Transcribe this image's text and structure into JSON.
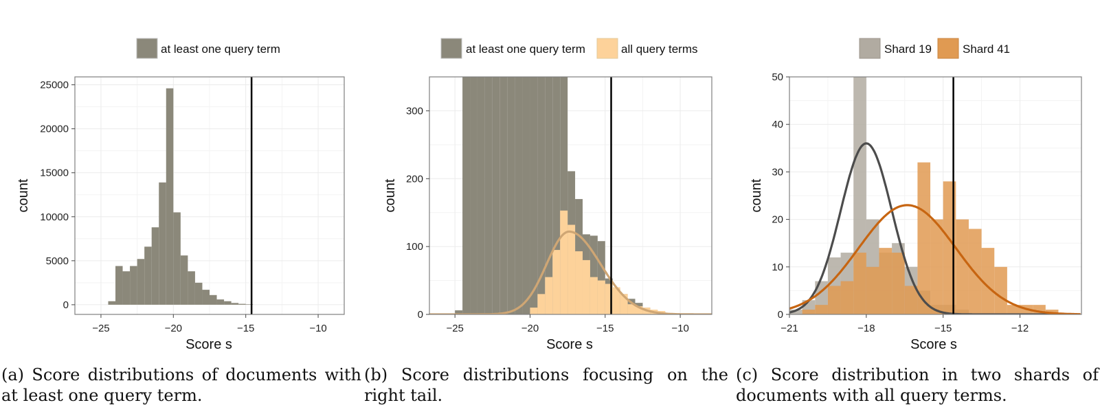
{
  "colors": {
    "dark_hist": "#8b887a",
    "light_hist": "#fdd29a",
    "light_curve": "#cfa674",
    "shard19": "#b1aba1",
    "shard41": "#e09a52",
    "curve19": "#4c4c4c",
    "curve41": "#c76511",
    "vline": "#000000",
    "panel_border": "#7f7f7f",
    "grid": "#ebebeb"
  },
  "captions": {
    "a": "(a) Score distributions of documents with at least one query term.",
    "b": "(b) Score distributions focusing on the right tail.",
    "c": "(c) Score distribution in two shards of documents with all query terms."
  },
  "chart_data": [
    {
      "type": "bar",
      "panel": "a",
      "xlabel": "Score s",
      "ylabel": "count",
      "legend": {
        "position": "top",
        "entries": [
          {
            "name": "at least one query term",
            "color_key": "dark_hist"
          }
        ]
      },
      "xlim": [
        -26.8,
        -8.2
      ],
      "ylim": [
        -1100,
        25900
      ],
      "xticks": [
        -25,
        -20,
        -15,
        -10
      ],
      "xtick_labels": [
        "−25",
        "−20",
        "−15",
        "−10"
      ],
      "yticks": [
        0,
        5000,
        10000,
        15000,
        20000,
        25000
      ],
      "ytick_labels": [
        "0",
        "5000",
        "10000",
        "15000",
        "20000",
        "25000"
      ],
      "vline": -14.6,
      "bin_width": 0.5,
      "series": [
        {
          "name": "at least one query term",
          "color_key": "dark_hist",
          "bin_starts": [
            -24.5,
            -24.0,
            -23.5,
            -23.0,
            -22.5,
            -22.0,
            -21.5,
            -21.0,
            -20.5,
            -20.0,
            -19.5,
            -19.0,
            -18.5,
            -18.0,
            -17.5,
            -17.0,
            -16.5,
            -16.0,
            -15.5,
            -15.0
          ],
          "values": [
            400,
            4400,
            3800,
            4400,
            5200,
            6600,
            8800,
            13900,
            24600,
            10500,
            5600,
            3800,
            2500,
            1700,
            1100,
            600,
            400,
            200,
            100,
            50
          ]
        }
      ]
    },
    {
      "type": "bar",
      "panel": "b",
      "xlabel": "Score s",
      "ylabel": "count",
      "legend": {
        "position": "top",
        "entries": [
          {
            "name": "at least one query term",
            "color_key": "dark_hist"
          },
          {
            "name": "all query terms",
            "color_key": "light_hist"
          }
        ]
      },
      "xlim": [
        -26.7,
        -7.9
      ],
      "ylim": [
        0,
        350
      ],
      "xticks": [
        -25,
        -20,
        -15,
        -10
      ],
      "xtick_labels": [
        "−25",
        "−20",
        "−15",
        "−10"
      ],
      "yticks": [
        0,
        100,
        200,
        300
      ],
      "ytick_labels": [
        "0",
        "100",
        "200",
        "300"
      ],
      "vline": -14.6,
      "bin_width": 0.5,
      "series": [
        {
          "name": "at least one query term",
          "color_key": "dark_hist",
          "bin_starts": [
            -25.5,
            -25.0,
            -24.5,
            -24.0,
            -23.5,
            -23.0,
            -22.5,
            -22.0,
            -21.5,
            -21.0,
            -20.5,
            -20.0,
            -19.5,
            -19.0,
            -18.5,
            -18.0,
            -17.5,
            -17.0,
            -16.5,
            -16.0,
            -15.5,
            -15.0,
            -14.5,
            -14.0,
            -13.5,
            -13.0,
            -12.5,
            -12.0,
            -11.5,
            -11.0,
            -10.5,
            -10.0
          ],
          "values": [
            1,
            6,
            350,
            350,
            350,
            350,
            350,
            350,
            350,
            350,
            350,
            350,
            350,
            350,
            350,
            350,
            211,
            170,
            118,
            116,
            108,
            53,
            38,
            30,
            23,
            17,
            10,
            6,
            4,
            2,
            1,
            0
          ]
        },
        {
          "name": "all query terms",
          "color_key": "light_hist",
          "bin_starts": [
            -20.0,
            -19.5,
            -19.0,
            -18.5,
            -18.0,
            -17.5,
            -17.0,
            -16.5,
            -16.0,
            -15.5,
            -15.0,
            -14.5,
            -14.0,
            -13.5,
            -13.0,
            -12.5,
            -12.0,
            -11.5,
            -11.0,
            -10.5,
            -10.0
          ],
          "values": [
            10,
            30,
            55,
            95,
            153,
            132,
            93,
            80,
            55,
            50,
            45,
            40,
            30,
            15,
            12,
            10,
            7,
            5,
            2,
            1,
            1
          ]
        },
        {
          "name": "fit",
          "kind": "curve",
          "color_key": "light_curve",
          "params": {
            "mu": -17.4,
            "sigma": 1.5,
            "peak": 122,
            "right_sigma": 2.1
          }
        }
      ]
    },
    {
      "type": "bar",
      "panel": "c",
      "xlabel": "Score s",
      "ylabel": "count",
      "legend": {
        "position": "top",
        "entries": [
          {
            "name": "Shard 19",
            "color_key": "shard19"
          },
          {
            "name": "Shard 41",
            "color_key": "shard41"
          }
        ]
      },
      "xlim": [
        -21,
        -9.6
      ],
      "ylim": [
        0,
        50
      ],
      "xticks": [
        -21,
        -18,
        -15,
        -12
      ],
      "xtick_labels": [
        "−21",
        "−18",
        "−15",
        "−12"
      ],
      "yticks": [
        0,
        10,
        20,
        30,
        40,
        50
      ],
      "ytick_labels": [
        "0",
        "10",
        "20",
        "30",
        "40",
        "50"
      ],
      "vline": -14.6,
      "bin_width": 0.5,
      "series": [
        {
          "name": "Shard 19",
          "color_key": "shard19",
          "bin_starts": [
            -21.0,
            -20.5,
            -20.0,
            -19.5,
            -19.0,
            -18.5,
            -18.0,
            -17.5,
            -17.0,
            -16.5,
            -16.0,
            -15.5,
            -15.0,
            -14.5,
            -14.0
          ],
          "values": [
            1,
            3,
            7,
            12,
            13,
            50,
            20,
            13,
            15,
            10,
            5,
            2,
            2,
            1,
            0
          ]
        },
        {
          "name": "Shard 41",
          "color_key": "shard41",
          "bin_starts": [
            -21.0,
            -20.5,
            -20.0,
            -19.5,
            -19.0,
            -18.5,
            -18.0,
            -17.5,
            -17.0,
            -16.5,
            -16.0,
            -15.5,
            -15.0,
            -14.5,
            -14.0,
            -13.5,
            -13.0,
            -12.5,
            -12.0,
            -11.5,
            -11.0
          ],
          "values": [
            0,
            1,
            2,
            6,
            7,
            13,
            10,
            14,
            13,
            6,
            32,
            20,
            28,
            20,
            18,
            14,
            10,
            2,
            2,
            2,
            1
          ]
        },
        {
          "name": "Shard 19 fit",
          "kind": "curve",
          "color_key": "curve19",
          "params": {
            "mu": -18,
            "sigma": 1.0,
            "peak": 36
          }
        },
        {
          "name": "Shard 41 fit",
          "kind": "curve",
          "color_key": "curve41",
          "params": {
            "mu": -16.4,
            "sigma": 1.9,
            "peak": 23
          }
        }
      ]
    }
  ]
}
